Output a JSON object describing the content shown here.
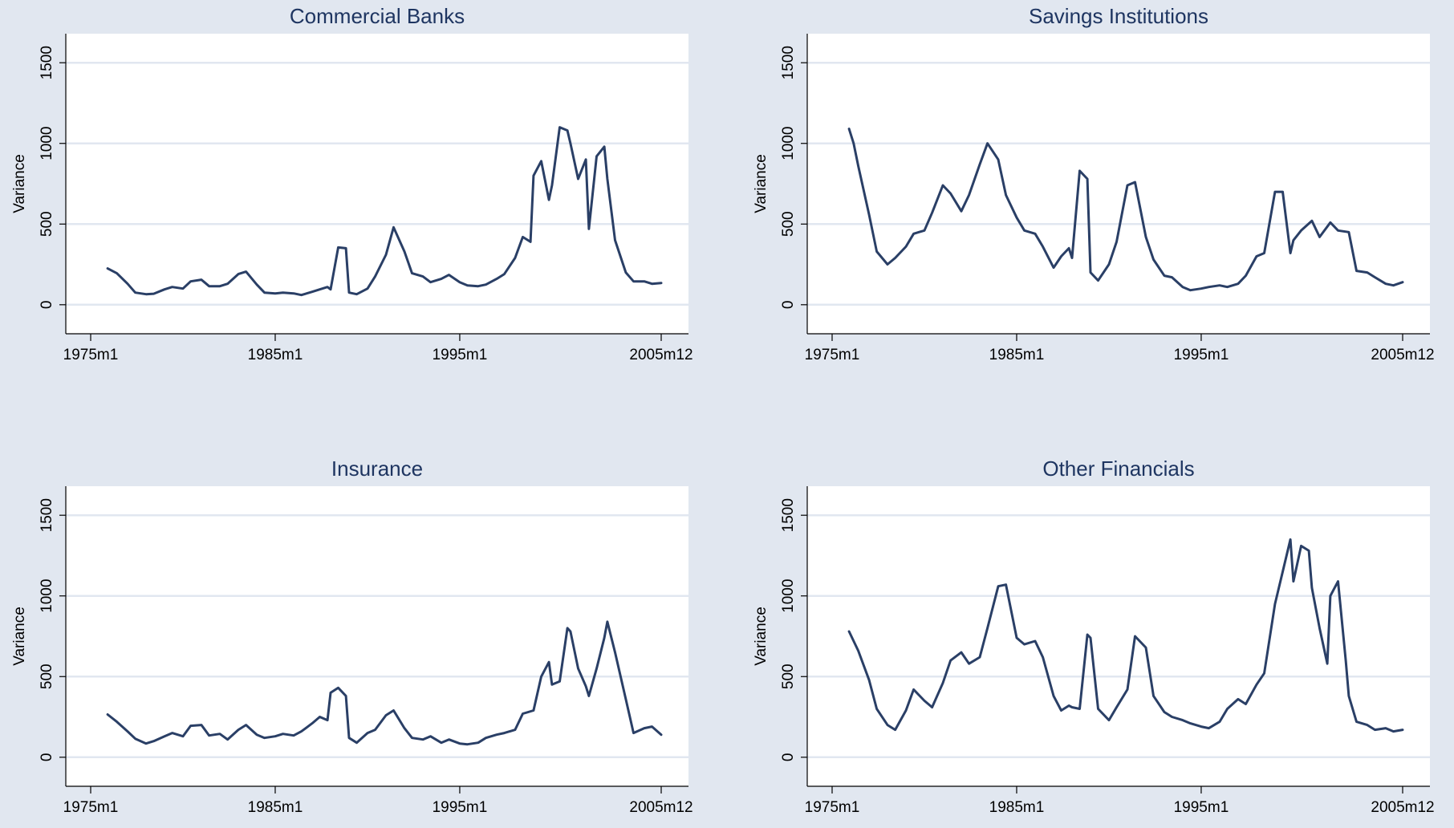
{
  "colors": {
    "outer_background": "#e1e7f0",
    "plot_background": "#ffffff",
    "gridline": "#e1e7f0",
    "series_line": "#2a3f66",
    "title_text": "#1e3561",
    "axis_text": "#000000"
  },
  "chart_data": [
    {
      "type": "line",
      "title": "Commercial Banks",
      "ylabel": "Variance",
      "xlabel": "",
      "xlim": [
        "1975m1",
        "2005m12"
      ],
      "ylim": [
        -180,
        1680
      ],
      "y_ticks": [
        "0",
        "500",
        "1000",
        "1500"
      ],
      "x_ticks": [
        "1975m1",
        "1985m1",
        "1995m1",
        "2005m12"
      ],
      "grid": true,
      "x": [
        "1975m12",
        "1976m6",
        "1977m1",
        "1977m6",
        "1978m1",
        "1978m6",
        "1979m1",
        "1979m6",
        "1980m1",
        "1980m6",
        "1981m1",
        "1981m6",
        "1982m1",
        "1982m6",
        "1983m1",
        "1983m6",
        "1984m1",
        "1984m6",
        "1985m1",
        "1985m6",
        "1986m1",
        "1986m6",
        "1987m1",
        "1987m6",
        "1987m11",
        "1988m1",
        "1988m6",
        "1988m11",
        "1989m1",
        "1989m6",
        "1990m1",
        "1990m6",
        "1991m1",
        "1991m6",
        "1992m1",
        "1992m6",
        "1993m1",
        "1993m6",
        "1994m1",
        "1994m6",
        "1995m1",
        "1995m6",
        "1996m1",
        "1996m6",
        "1997m1",
        "1997m6",
        "1998m1",
        "1998m6",
        "1998m11",
        "1999m1",
        "1999m6",
        "1999m11",
        "2000m1",
        "2000m6",
        "2000m11",
        "2001m1",
        "2001m6",
        "2001m11",
        "2002m1",
        "2002m6",
        "2002m11",
        "2003m1",
        "2003m6",
        "2004m1",
        "2004m6",
        "2005m1",
        "2005m6",
        "2005m12"
      ],
      "series": [
        {
          "values": [
            225,
            195,
            130,
            75,
            65,
            68,
            95,
            110,
            100,
            145,
            155,
            115,
            115,
            130,
            190,
            205,
            125,
            75,
            70,
            75,
            70,
            60,
            80,
            95,
            110,
            95,
            355,
            350,
            75,
            65,
            100,
            175,
            310,
            480,
            330,
            195,
            175,
            140,
            160,
            185,
            140,
            120,
            115,
            125,
            160,
            190,
            290,
            420,
            390,
            800,
            890,
            650,
            740,
            1100,
            1080,
            1000,
            780,
            900,
            470,
            920,
            980,
            780,
            400,
            200,
            145,
            145,
            130,
            135
          ]
        }
      ]
    },
    {
      "type": "line",
      "title": "Savings Institutions",
      "ylabel": "Variance",
      "xlabel": "",
      "xlim": [
        "1975m1",
        "2005m12"
      ],
      "ylim": [
        -180,
        1680
      ],
      "y_ticks": [
        "0",
        "500",
        "1000",
        "1500"
      ],
      "x_ticks": [
        "1975m1",
        "1985m1",
        "1995m1",
        "2005m12"
      ],
      "grid": true,
      "x": [
        "1975m12",
        "1976m3",
        "1976m6",
        "1977m1",
        "1977m6",
        "1978m1",
        "1978m6",
        "1979m1",
        "1979m6",
        "1980m1",
        "1980m6",
        "1981m1",
        "1981m6",
        "1982m1",
        "1982m6",
        "1983m1",
        "1983m6",
        "1984m1",
        "1984m6",
        "1985m1",
        "1985m6",
        "1986m1",
        "1986m6",
        "1987m1",
        "1987m6",
        "1987m11",
        "1988m1",
        "1988m6",
        "1988m11",
        "1989m1",
        "1989m6",
        "1990m1",
        "1990m6",
        "1991m1",
        "1991m6",
        "1992m1",
        "1992m6",
        "1993m1",
        "1993m6",
        "1994m1",
        "1994m6",
        "1995m1",
        "1995m6",
        "1996m1",
        "1996m6",
        "1997m1",
        "1997m6",
        "1998m1",
        "1998m6",
        "1999m1",
        "1999m6",
        "1999m11",
        "2000m1",
        "2000m6",
        "2001m1",
        "2001m6",
        "2002m1",
        "2002m6",
        "2003m1",
        "2003m6",
        "2004m1",
        "2004m6",
        "2005m1",
        "2005m6",
        "2005m12"
      ],
      "series": [
        {
          "values": [
            1090,
            1000,
            860,
            560,
            330,
            250,
            290,
            360,
            440,
            460,
            570,
            740,
            690,
            580,
            680,
            870,
            1000,
            900,
            680,
            540,
            460,
            440,
            360,
            230,
            300,
            350,
            290,
            830,
            780,
            200,
            150,
            250,
            390,
            740,
            760,
            420,
            280,
            180,
            170,
            110,
            90,
            100,
            110,
            120,
            110,
            130,
            180,
            300,
            320,
            700,
            700,
            320,
            400,
            460,
            520,
            420,
            510,
            460,
            450,
            210,
            200,
            170,
            130,
            120,
            140
          ]
        }
      ]
    },
    {
      "type": "line",
      "title": "Insurance",
      "ylabel": "Variance",
      "xlabel": "",
      "xlim": [
        "1975m1",
        "2005m12"
      ],
      "ylim": [
        -180,
        1680
      ],
      "y_ticks": [
        "0",
        "500",
        "1000",
        "1500"
      ],
      "x_ticks": [
        "1975m1",
        "1985m1",
        "1995m1",
        "2005m12"
      ],
      "grid": true,
      "x": [
        "1975m12",
        "1976m6",
        "1977m1",
        "1977m6",
        "1978m1",
        "1978m6",
        "1979m1",
        "1979m6",
        "1980m1",
        "1980m6",
        "1981m1",
        "1981m6",
        "1982m1",
        "1982m6",
        "1983m1",
        "1983m6",
        "1984m1",
        "1984m6",
        "1985m1",
        "1985m6",
        "1986m1",
        "1986m6",
        "1987m1",
        "1987m6",
        "1987m11",
        "1988m1",
        "1988m6",
        "1988m11",
        "1989m1",
        "1989m6",
        "1990m1",
        "1990m6",
        "1991m1",
        "1991m6",
        "1992m1",
        "1992m6",
        "1993m1",
        "1993m6",
        "1994m1",
        "1994m6",
        "1995m1",
        "1995m6",
        "1996m1",
        "1996m6",
        "1997m1",
        "1997m6",
        "1998m1",
        "1998m6",
        "1999m1",
        "1999m6",
        "1999m11",
        "2000m1",
        "2000m6",
        "2000m11",
        "2001m1",
        "2001m6",
        "2001m11",
        "2002m1",
        "2002m6",
        "2002m11",
        "2003m1",
        "2003m6",
        "2004m1",
        "2004m6",
        "2005m1",
        "2005m6",
        "2005m12"
      ],
      "series": [
        {
          "values": [
            265,
            220,
            160,
            115,
            85,
            100,
            130,
            150,
            130,
            195,
            200,
            135,
            145,
            110,
            170,
            200,
            140,
            120,
            130,
            145,
            135,
            160,
            210,
            250,
            230,
            400,
            430,
            380,
            120,
            90,
            150,
            170,
            260,
            290,
            180,
            120,
            110,
            130,
            90,
            110,
            85,
            80,
            90,
            120,
            140,
            150,
            170,
            270,
            290,
            500,
            590,
            450,
            470,
            800,
            780,
            550,
            440,
            380,
            550,
            740,
            840,
            650,
            360,
            150,
            180,
            190,
            140
          ]
        }
      ]
    },
    {
      "type": "line",
      "title": "Other Financials",
      "ylabel": "Variance",
      "xlabel": "",
      "xlim": [
        "1975m1",
        "2005m12"
      ],
      "ylim": [
        -180,
        1680
      ],
      "y_ticks": [
        "0",
        "500",
        "1000",
        "1500"
      ],
      "x_ticks": [
        "1975m1",
        "1985m1",
        "1995m1",
        "2005m12"
      ],
      "grid": true,
      "x": [
        "1975m12",
        "1976m6",
        "1977m1",
        "1977m6",
        "1978m1",
        "1978m6",
        "1979m1",
        "1979m6",
        "1980m1",
        "1980m6",
        "1981m1",
        "1981m6",
        "1982m1",
        "1982m6",
        "1983m1",
        "1983m6",
        "1984m1",
        "1984m6",
        "1985m1",
        "1985m6",
        "1986m1",
        "1986m6",
        "1987m1",
        "1987m6",
        "1987m11",
        "1988m1",
        "1988m6",
        "1988m11",
        "1989m1",
        "1989m6",
        "1990m1",
        "1990m6",
        "1991m1",
        "1991m6",
        "1992m1",
        "1992m6",
        "1993m1",
        "1993m6",
        "1994m1",
        "1994m6",
        "1995m1",
        "1995m6",
        "1996m1",
        "1996m6",
        "1997m1",
        "1997m6",
        "1998m1",
        "1998m6",
        "1999m1",
        "1999m6",
        "1999m11",
        "2000m1",
        "2000m6",
        "2000m11",
        "2001m1",
        "2001m6",
        "2001m11",
        "2002m1",
        "2002m6",
        "2002m11",
        "2003m1",
        "2003m6",
        "2004m1",
        "2004m6",
        "2005m1",
        "2005m6",
        "2005m12"
      ],
      "series": [
        {
          "values": [
            780,
            660,
            480,
            300,
            200,
            170,
            290,
            420,
            350,
            310,
            460,
            600,
            650,
            580,
            620,
            800,
            1060,
            1070,
            740,
            700,
            720,
            620,
            380,
            290,
            320,
            310,
            300,
            760,
            740,
            300,
            230,
            310,
            420,
            750,
            680,
            380,
            280,
            250,
            230,
            210,
            190,
            180,
            220,
            300,
            360,
            330,
            450,
            520,
            950,
            1150,
            1350,
            1090,
            1310,
            1280,
            1050,
            800,
            580,
            1000,
            1090,
            600,
            380,
            220,
            200,
            170,
            180,
            160,
            170
          ]
        }
      ]
    }
  ]
}
